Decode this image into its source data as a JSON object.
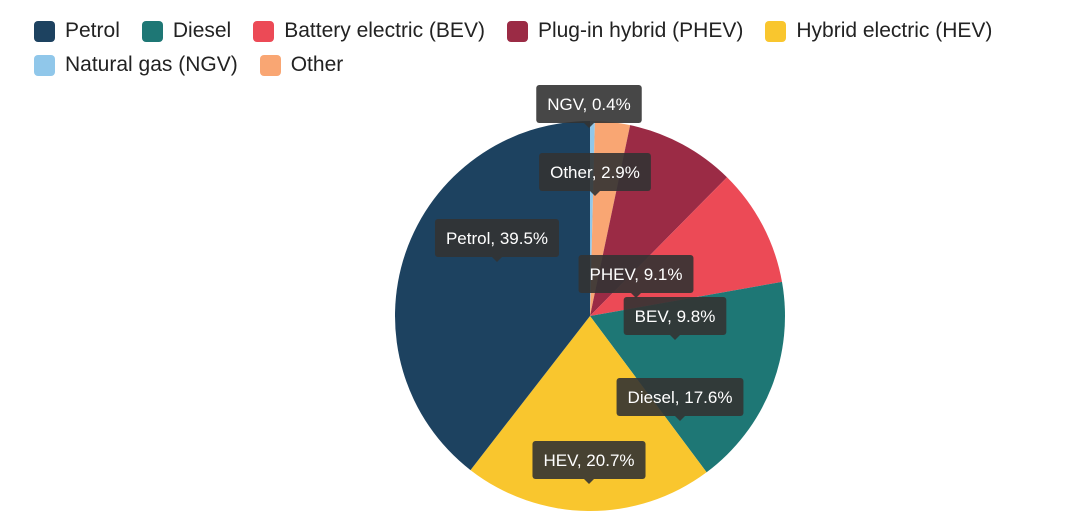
{
  "chart_data": {
    "type": "pie",
    "title": "",
    "legend_position": "top-left",
    "slices": [
      {
        "name": "Petrol",
        "short": "Petrol",
        "value": 39.5,
        "color": "#1d4260"
      },
      {
        "name": "Diesel",
        "short": "Diesel",
        "value": 17.6,
        "color": "#1e7775"
      },
      {
        "name": "Battery electric (BEV)",
        "short": "BEV",
        "value": 9.8,
        "color": "#ec4a56"
      },
      {
        "name": "Plug-in hybrid (PHEV)",
        "short": "PHEV",
        "value": 9.1,
        "color": "#9b2b45"
      },
      {
        "name": "Hybrid electric (HEV)",
        "short": "HEV",
        "value": 20.7,
        "color": "#f9c62e"
      },
      {
        "name": "Natural gas (NGV)",
        "short": "NGV",
        "value": 0.4,
        "color": "#90c7ea"
      },
      {
        "name": "Other",
        "short": "Other",
        "value": 2.9,
        "color": "#f9a673"
      }
    ],
    "labels": [
      "Petrol, 39.5%",
      "Diesel, 17.6%",
      "BEV, 9.8%",
      "PHEV, 9.1%",
      "HEV, 20.7%",
      "NGV, 0.4%",
      "Other, 2.9%"
    ],
    "clockwise_order_from_top": [
      "NGV",
      "Other",
      "PHEV",
      "BEV",
      "Diesel",
      "HEV",
      "Petrol"
    ]
  }
}
